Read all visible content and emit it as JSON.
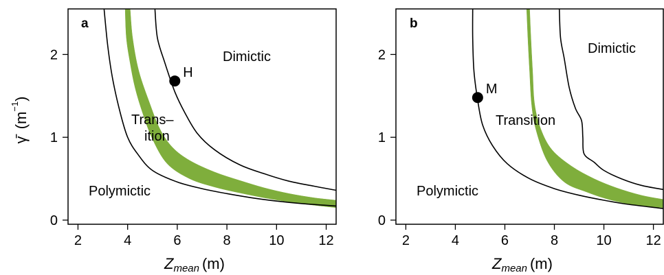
{
  "chart_data": [
    {
      "type": "line",
      "panel": "a",
      "xlabel": "Z_mean (m)",
      "ylabel": "γ̄ (m⁻¹)",
      "xlim": [
        1.6,
        12.4
      ],
      "ylim": [
        -0.05,
        2.55
      ],
      "xticks": [
        2,
        4,
        6,
        8,
        10,
        12
      ],
      "yticks": [
        0,
        1,
        2
      ],
      "grid": false,
      "regions": [
        "Dimictic",
        "Trans–",
        "ition",
        "Polymictic"
      ],
      "boundaries": [
        {
          "role": "polymictic-boundary",
          "color": "#000000",
          "points": [
            [
              3.05,
              2.55
            ],
            [
              3.2,
              2.1
            ],
            [
              3.4,
              1.7
            ],
            [
              3.7,
              1.3
            ],
            [
              4.0,
              1.0
            ],
            [
              4.4,
              0.8
            ],
            [
              5.0,
              0.6
            ],
            [
              6.0,
              0.46
            ],
            [
              7.0,
              0.38
            ],
            [
              8.0,
              0.32
            ],
            [
              9.0,
              0.27
            ],
            [
              10.0,
              0.23
            ],
            [
              11.0,
              0.2
            ],
            [
              12.4,
              0.17
            ]
          ]
        },
        {
          "role": "dimictic-boundary",
          "color": "#000000",
          "points": [
            [
              5.1,
              2.55
            ],
            [
              5.2,
              2.2
            ],
            [
              5.5,
              1.9
            ],
            [
              5.9,
              1.55
            ],
            [
              6.3,
              1.3
            ],
            [
              6.8,
              1.05
            ],
            [
              7.5,
              0.85
            ],
            [
              8.5,
              0.67
            ],
            [
              9.5,
              0.56
            ],
            [
              10.5,
              0.47
            ],
            [
              11.5,
              0.41
            ],
            [
              12.4,
              0.36
            ]
          ]
        }
      ],
      "model_band": {
        "color": "#7fae3c",
        "upper": [
          [
            4.1,
            2.55
          ],
          [
            4.2,
            2.2
          ],
          [
            4.45,
            1.8
          ],
          [
            4.9,
            1.4
          ],
          [
            5.3,
            1.1
          ],
          [
            5.8,
            0.88
          ],
          [
            6.5,
            0.72
          ],
          [
            7.5,
            0.58
          ],
          [
            8.5,
            0.48
          ],
          [
            9.5,
            0.39
          ],
          [
            10.5,
            0.32
          ],
          [
            11.5,
            0.27
          ],
          [
            12.4,
            0.24
          ]
        ],
        "lower": [
          [
            3.9,
            2.55
          ],
          [
            3.95,
            2.2
          ],
          [
            4.1,
            1.9
          ],
          [
            4.3,
            1.6
          ],
          [
            4.6,
            1.3
          ],
          [
            5.0,
            0.98
          ],
          [
            5.6,
            0.68
          ],
          [
            6.5,
            0.5
          ],
          [
            7.5,
            0.4
          ],
          [
            8.5,
            0.33
          ],
          [
            9.5,
            0.27
          ],
          [
            10.5,
            0.22
          ],
          [
            11.5,
            0.18
          ],
          [
            12.4,
            0.15
          ]
        ]
      },
      "points": [
        {
          "label": "H",
          "x": 5.9,
          "y": 1.68
        }
      ]
    },
    {
      "type": "line",
      "panel": "b",
      "xlabel": "Z_mean (m)",
      "ylabel": "",
      "xlim": [
        1.6,
        12.4
      ],
      "ylim": [
        -0.05,
        2.55
      ],
      "xticks": [
        2,
        4,
        6,
        8,
        10,
        12
      ],
      "yticks": [
        0,
        1,
        2
      ],
      "grid": false,
      "regions": [
        "Dimictic",
        "Transition",
        "Polymictic"
      ],
      "boundaries": [
        {
          "role": "polymictic-boundary",
          "color": "#000000",
          "points": [
            [
              4.7,
              2.55
            ],
            [
              4.7,
              2.2
            ],
            [
              4.75,
              1.8
            ],
            [
              4.9,
              1.45
            ],
            [
              5.1,
              1.15
            ],
            [
              5.5,
              0.9
            ],
            [
              6.1,
              0.68
            ],
            [
              7.0,
              0.5
            ],
            [
              8.0,
              0.38
            ],
            [
              9.0,
              0.3
            ],
            [
              10.0,
              0.24
            ],
            [
              11.0,
              0.19
            ],
            [
              12.4,
              0.14
            ]
          ]
        },
        {
          "role": "dimictic-boundary",
          "color": "#000000",
          "points": [
            [
              8.2,
              2.55
            ],
            [
              8.25,
              2.2
            ],
            [
              8.4,
              1.95
            ],
            [
              8.6,
              1.6
            ],
            [
              8.85,
              1.35
            ],
            [
              9.1,
              1.2
            ],
            [
              9.15,
              1.0
            ],
            [
              9.2,
              0.8
            ],
            [
              9.6,
              0.7
            ],
            [
              10.0,
              0.6
            ],
            [
              10.7,
              0.5
            ],
            [
              11.5,
              0.42
            ],
            [
              12.4,
              0.37
            ]
          ]
        }
      ],
      "model_band": {
        "color": "#7fae3c",
        "upper": [
          [
            7.0,
            2.55
          ],
          [
            7.05,
            2.2
          ],
          [
            7.12,
            1.8
          ],
          [
            7.2,
            1.4
          ],
          [
            7.45,
            1.1
          ],
          [
            7.9,
            0.85
          ],
          [
            8.7,
            0.65
          ],
          [
            9.6,
            0.5
          ],
          [
            10.5,
            0.39
          ],
          [
            11.5,
            0.3
          ],
          [
            12.4,
            0.25
          ]
        ],
        "lower": [
          [
            6.88,
            2.55
          ],
          [
            6.93,
            2.2
          ],
          [
            7.0,
            1.8
          ],
          [
            7.08,
            1.4
          ],
          [
            7.25,
            1.1
          ],
          [
            7.7,
            0.72
          ],
          [
            8.4,
            0.46
          ],
          [
            9.3,
            0.34
          ],
          [
            10.2,
            0.25
          ],
          [
            11.3,
            0.18
          ],
          [
            12.4,
            0.15
          ]
        ]
      },
      "points": [
        {
          "label": "M",
          "x": 4.9,
          "y": 1.48
        }
      ]
    }
  ]
}
